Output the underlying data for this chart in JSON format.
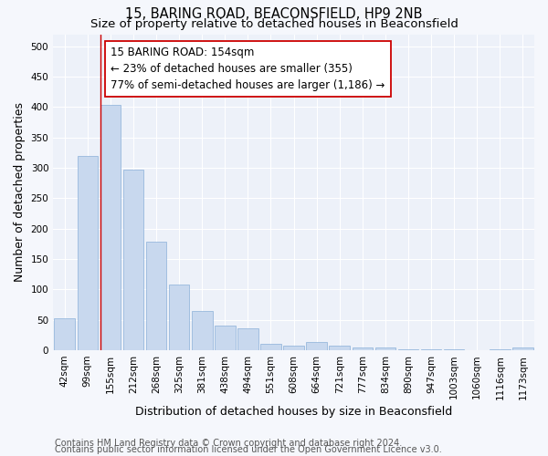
{
  "title": "15, BARING ROAD, BEACONSFIELD, HP9 2NB",
  "subtitle": "Size of property relative to detached houses in Beaconsfield",
  "xlabel": "Distribution of detached houses by size in Beaconsfield",
  "ylabel": "Number of detached properties",
  "categories": [
    "42sqm",
    "99sqm",
    "155sqm",
    "212sqm",
    "268sqm",
    "325sqm",
    "381sqm",
    "438sqm",
    "494sqm",
    "551sqm",
    "608sqm",
    "664sqm",
    "721sqm",
    "777sqm",
    "834sqm",
    "890sqm",
    "947sqm",
    "1003sqm",
    "1060sqm",
    "1116sqm",
    "1173sqm"
  ],
  "values": [
    53,
    320,
    403,
    297,
    178,
    108,
    65,
    40,
    36,
    10,
    7,
    14,
    8,
    5,
    4,
    1,
    1,
    1,
    0,
    2,
    4
  ],
  "bar_color": "#c8d8ee",
  "bar_edge_color": "#8ab0d8",
  "highlight_line_color": "#cc0000",
  "annotation_text": "15 BARING ROAD: 154sqm\n← 23% of detached houses are smaller (355)\n77% of semi-detached houses are larger (1,186) →",
  "annotation_box_color": "#ffffff",
  "annotation_box_edge_color": "#cc0000",
  "ylim": [
    0,
    520
  ],
  "yticks": [
    0,
    50,
    100,
    150,
    200,
    250,
    300,
    350,
    400,
    450,
    500
  ],
  "footer_line1": "Contains HM Land Registry data © Crown copyright and database right 2024.",
  "footer_line2": "Contains public sector information licensed under the Open Government Licence v3.0.",
  "background_color": "#f5f7fc",
  "plot_bg_color": "#edf1f9",
  "grid_color": "#ffffff",
  "title_fontsize": 10.5,
  "subtitle_fontsize": 9.5,
  "axis_label_fontsize": 9,
  "tick_fontsize": 7.5,
  "footer_fontsize": 7
}
